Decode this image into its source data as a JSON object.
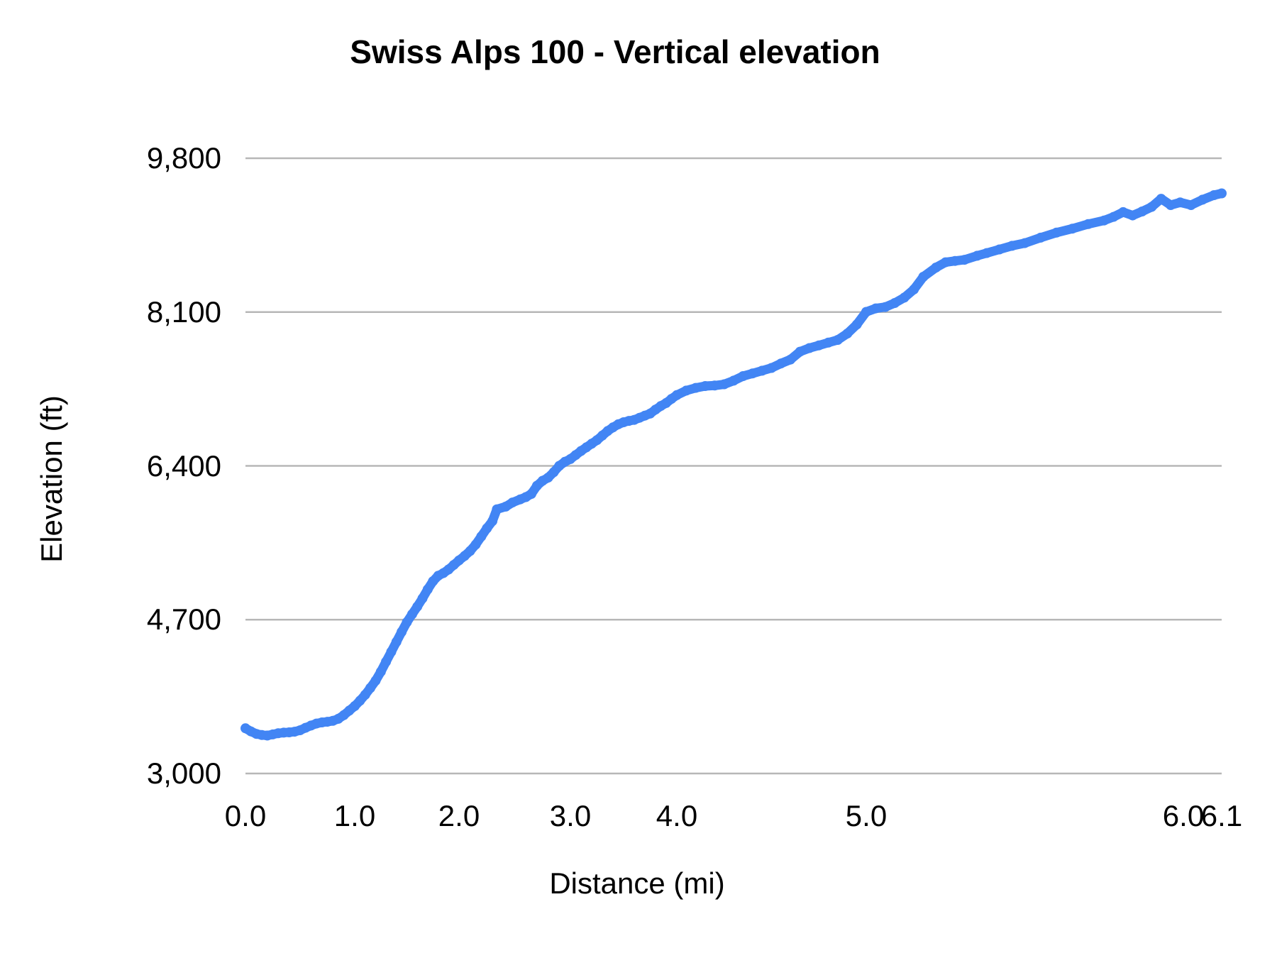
{
  "title": "Swiss Alps 100 - Vertical elevation",
  "y_axis": {
    "title": "Elevation (ft)",
    "min": 3000,
    "max": 9800,
    "ticks": [
      {
        "label": "9,800",
        "value": 9800
      },
      {
        "label": "8,100",
        "value": 8100
      },
      {
        "label": "6,400",
        "value": 6400
      },
      {
        "label": "4,700",
        "value": 4700
      },
      {
        "label": "3,000",
        "value": 3000
      }
    ]
  },
  "x_axis": {
    "title": "Distance (mi)",
    "min": 0,
    "max": 6.1,
    "ticks": [
      {
        "label": "0.0",
        "value": 0.0
      },
      {
        "label": "1.0",
        "value": 1.0
      },
      {
        "label": "2.0",
        "value": 2.0
      },
      {
        "label": "3.0",
        "value": 3.0
      },
      {
        "label": "4.0",
        "value": 4.0
      },
      {
        "label": "5.0",
        "value": 5.0
      },
      {
        "label": "6.0",
        "value": 6.0
      },
      {
        "label": "6.1",
        "value": 6.1
      }
    ]
  },
  "colors": {
    "line": "#4285f4",
    "gridline": "#b7b7b7",
    "text": "#000000",
    "background": "#ffffff"
  },
  "chart_data": {
    "type": "line",
    "title": "Swiss Alps 100 - Vertical elevation",
    "xlabel": "Distance (mi)",
    "ylabel": "Elevation (ft)",
    "xlim": [
      0,
      6.1
    ],
    "ylim": [
      3000,
      9800
    ],
    "grid": "horizontal-only",
    "legend": "none",
    "marker": "round-thick-line",
    "x_spacing_note": "categorical axis - tick spacing is non-uniform, miles 4-6 stretch wider",
    "series": [
      {
        "name": "Elevation",
        "points": [
          [
            0.0,
            3500
          ],
          [
            0.05,
            3465
          ],
          [
            0.1,
            3438
          ],
          [
            0.15,
            3425
          ],
          [
            0.2,
            3420
          ],
          [
            0.25,
            3432
          ],
          [
            0.3,
            3445
          ],
          [
            0.35,
            3452
          ],
          [
            0.4,
            3455
          ],
          [
            0.45,
            3462
          ],
          [
            0.5,
            3478
          ],
          [
            0.55,
            3505
          ],
          [
            0.6,
            3530
          ],
          [
            0.65,
            3552
          ],
          [
            0.7,
            3565
          ],
          [
            0.75,
            3572
          ],
          [
            0.8,
            3582
          ],
          [
            0.85,
            3605
          ],
          [
            0.9,
            3645
          ],
          [
            0.95,
            3695
          ],
          [
            1.0,
            3745
          ],
          [
            1.05,
            3805
          ],
          [
            1.1,
            3870
          ],
          [
            1.15,
            3945
          ],
          [
            1.2,
            4025
          ],
          [
            1.25,
            4125
          ],
          [
            1.3,
            4235
          ],
          [
            1.35,
            4345
          ],
          [
            1.4,
            4455
          ],
          [
            1.45,
            4565
          ],
          [
            1.5,
            4672
          ],
          [
            1.55,
            4760
          ],
          [
            1.6,
            4845
          ],
          [
            1.65,
            4935
          ],
          [
            1.7,
            5035
          ],
          [
            1.75,
            5125
          ],
          [
            1.8,
            5185
          ],
          [
            1.85,
            5215
          ],
          [
            1.9,
            5255
          ],
          [
            1.95,
            5305
          ],
          [
            2.0,
            5355
          ],
          [
            2.05,
            5405
          ],
          [
            2.1,
            5460
          ],
          [
            2.15,
            5530
          ],
          [
            2.2,
            5620
          ],
          [
            2.25,
            5710
          ],
          [
            2.3,
            5790
          ],
          [
            2.34,
            5920
          ],
          [
            2.42,
            5950
          ],
          [
            2.48,
            5995
          ],
          [
            2.55,
            6030
          ],
          [
            2.6,
            6055
          ],
          [
            2.65,
            6090
          ],
          [
            2.7,
            6180
          ],
          [
            2.75,
            6235
          ],
          [
            2.8,
            6270
          ],
          [
            2.85,
            6330
          ],
          [
            2.9,
            6400
          ],
          [
            2.95,
            6445
          ],
          [
            3.0,
            6475
          ],
          [
            3.05,
            6520
          ],
          [
            3.1,
            6565
          ],
          [
            3.15,
            6605
          ],
          [
            3.2,
            6645
          ],
          [
            3.25,
            6685
          ],
          [
            3.3,
            6735
          ],
          [
            3.35,
            6785
          ],
          [
            3.4,
            6825
          ],
          [
            3.45,
            6860
          ],
          [
            3.5,
            6882
          ],
          [
            3.55,
            6897
          ],
          [
            3.6,
            6908
          ],
          [
            3.65,
            6932
          ],
          [
            3.7,
            6955
          ],
          [
            3.75,
            6978
          ],
          [
            3.8,
            7022
          ],
          [
            3.85,
            7062
          ],
          [
            3.9,
            7095
          ],
          [
            3.95,
            7140
          ],
          [
            4.0,
            7182
          ],
          [
            4.05,
            7232
          ],
          [
            4.1,
            7262
          ],
          [
            4.15,
            7282
          ],
          [
            4.2,
            7288
          ],
          [
            4.25,
            7302
          ],
          [
            4.3,
            7342
          ],
          [
            4.35,
            7392
          ],
          [
            4.4,
            7422
          ],
          [
            4.45,
            7452
          ],
          [
            4.5,
            7482
          ],
          [
            4.55,
            7532
          ],
          [
            4.6,
            7575
          ],
          [
            4.65,
            7662
          ],
          [
            4.7,
            7702
          ],
          [
            4.75,
            7732
          ],
          [
            4.8,
            7762
          ],
          [
            4.85,
            7792
          ],
          [
            4.9,
            7862
          ],
          [
            4.95,
            7962
          ],
          [
            5.0,
            8102
          ],
          [
            5.03,
            8140
          ],
          [
            5.06,
            8155
          ],
          [
            5.09,
            8200
          ],
          [
            5.12,
            8260
          ],
          [
            5.15,
            8350
          ],
          [
            5.18,
            8490
          ],
          [
            5.22,
            8592
          ],
          [
            5.25,
            8650
          ],
          [
            5.28,
            8665
          ],
          [
            5.31,
            8678
          ],
          [
            5.35,
            8722
          ],
          [
            5.38,
            8752
          ],
          [
            5.42,
            8792
          ],
          [
            5.46,
            8832
          ],
          [
            5.5,
            8862
          ],
          [
            5.55,
            8922
          ],
          [
            5.6,
            8978
          ],
          [
            5.65,
            9022
          ],
          [
            5.7,
            9072
          ],
          [
            5.75,
            9112
          ],
          [
            5.78,
            9152
          ],
          [
            5.81,
            9205
          ],
          [
            5.84,
            9168
          ],
          [
            5.87,
            9212
          ],
          [
            5.9,
            9262
          ],
          [
            5.93,
            9352
          ],
          [
            5.96,
            9282
          ],
          [
            5.99,
            9312
          ],
          [
            6.02,
            9282
          ],
          [
            6.05,
            9342
          ],
          [
            6.08,
            9392
          ],
          [
            6.1,
            9412
          ]
        ]
      }
    ]
  }
}
